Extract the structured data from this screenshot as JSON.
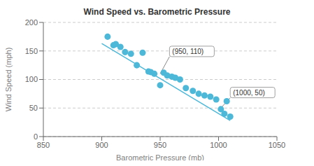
{
  "chart_data": {
    "type": "scatter",
    "title": "Wind Speed vs. Barometric Pressure",
    "x_label": "Barometric Pressure (mb)",
    "y_label": "Wind Speed (mph)",
    "xlim": [
      850,
      1050
    ],
    "ylim": [
      0,
      200
    ],
    "xticks": [
      850,
      900,
      950,
      1000,
      1050
    ],
    "yticks": [
      0,
      50,
      100,
      150,
      200
    ],
    "grid": "y",
    "series": [
      {
        "type": "scatter",
        "color": "#4db8d8",
        "x": [
          905,
          910,
          912,
          916,
          920,
          925,
          930,
          935,
          940,
          942,
          945,
          950,
          953,
          956,
          960,
          963,
          967,
          972,
          978,
          983,
          988,
          993,
          998,
          1002,
          1005,
          1007,
          1010
        ],
        "values": [
          175,
          160,
          162,
          157,
          148,
          145,
          125,
          147,
          114,
          113,
          110,
          90,
          112,
          107,
          105,
          103,
          100,
          85,
          80,
          75,
          72,
          70,
          65,
          48,
          40,
          62,
          35
        ]
      },
      {
        "type": "line",
        "color": "#4db8d8",
        "x": [
          900,
          1010
        ],
        "values": [
          163,
          28
        ]
      }
    ],
    "annotations": [
      {
        "text": "(950, 110)",
        "x": 950,
        "y": 110,
        "text_x": 958,
        "text_y": 140
      },
      {
        "text": "(1000, 50)",
        "x": 1002,
        "y": 50,
        "text_x": 1010,
        "text_y": 68
      }
    ]
  }
}
